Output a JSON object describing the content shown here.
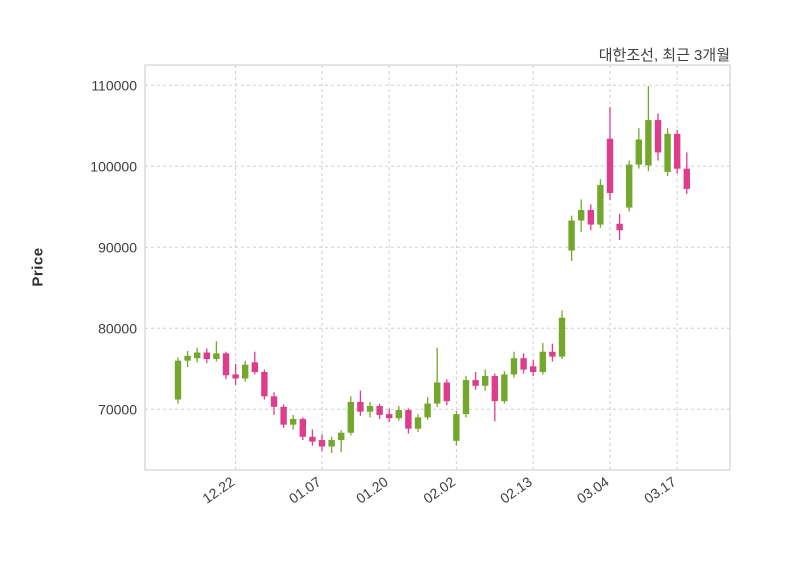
{
  "chart": {
    "title": "대한조선, 최근 3개월",
    "ylabel": "Price"
  },
  "chart_data": {
    "type": "candlestick",
    "title": "대한조선, 최근 3개월",
    "ylabel": "Price",
    "xlabel": "",
    "ylim": [
      62500,
      112500
    ],
    "yticks": [
      70000,
      80000,
      90000,
      100000,
      110000
    ],
    "xtick_labels": [
      "12.22",
      "01.07",
      "01.20",
      "02.02",
      "02.13",
      "03.04",
      "03.17"
    ],
    "xtick_indices": [
      6,
      15,
      22,
      29,
      37,
      45,
      52
    ],
    "grid": "dashed",
    "legend": "none",
    "up_color": "#74a82c",
    "down_color": "#de3d8c",
    "candles_format": [
      "open",
      "high",
      "low",
      "close"
    ],
    "candles": [
      [
        71200,
        76400,
        70700,
        76000
      ],
      [
        76000,
        77200,
        75200,
        76600
      ],
      [
        76300,
        77600,
        75800,
        77000
      ],
      [
        77000,
        77500,
        75700,
        76200
      ],
      [
        76200,
        78400,
        75900,
        76900
      ],
      [
        76900,
        77100,
        73700,
        74200
      ],
      [
        74300,
        75600,
        73000,
        73800
      ],
      [
        73800,
        76000,
        73400,
        75500
      ],
      [
        75800,
        77100,
        74300,
        74600
      ],
      [
        74600,
        74900,
        71200,
        71600
      ],
      [
        71600,
        72100,
        69300,
        70300
      ],
      [
        70300,
        70600,
        67700,
        68100
      ],
      [
        68100,
        69300,
        67500,
        68800
      ],
      [
        68800,
        69000,
        66200,
        66600
      ],
      [
        66600,
        67500,
        65500,
        66000
      ],
      [
        66200,
        66900,
        64800,
        65400
      ],
      [
        65400,
        66600,
        64600,
        66200
      ],
      [
        66200,
        67400,
        64700,
        67100
      ],
      [
        67100,
        71600,
        66800,
        70900
      ],
      [
        70900,
        72300,
        69200,
        69700
      ],
      [
        69700,
        70900,
        69000,
        70400
      ],
      [
        70400,
        70700,
        68800,
        69300
      ],
      [
        69400,
        70100,
        68400,
        68900
      ],
      [
        68900,
        70400,
        68600,
        69900
      ],
      [
        69900,
        70100,
        67000,
        67600
      ],
      [
        67600,
        69400,
        67200,
        69000
      ],
      [
        69000,
        71500,
        68700,
        70700
      ],
      [
        70700,
        77600,
        70300,
        73300
      ],
      [
        73300,
        73700,
        70500,
        71000
      ],
      [
        66100,
        69800,
        65500,
        69400
      ],
      [
        69400,
        74100,
        69000,
        73600
      ],
      [
        73600,
        74600,
        72400,
        72900
      ],
      [
        72900,
        74900,
        72300,
        74100
      ],
      [
        74100,
        74400,
        68500,
        71000
      ],
      [
        71000,
        74700,
        70700,
        74300
      ],
      [
        74300,
        77100,
        73900,
        76300
      ],
      [
        76300,
        76900,
        74400,
        74900
      ],
      [
        75300,
        76100,
        74100,
        74600
      ],
      [
        74600,
        78200,
        74300,
        77100
      ],
      [
        77100,
        78100,
        75900,
        76500
      ],
      [
        76500,
        82200,
        76200,
        81300
      ],
      [
        89600,
        93900,
        88300,
        93300
      ],
      [
        93300,
        95900,
        91900,
        94600
      ],
      [
        94600,
        95300,
        92100,
        92800
      ],
      [
        92800,
        98400,
        92400,
        97700
      ],
      [
        103400,
        107300,
        95800,
        96700
      ],
      [
        92900,
        94100,
        90900,
        92100
      ],
      [
        94900,
        100700,
        94400,
        100200
      ],
      [
        100200,
        104700,
        99700,
        103300
      ],
      [
        100100,
        109900,
        99400,
        105700
      ],
      [
        105700,
        106500,
        100700,
        101700
      ],
      [
        99300,
        104700,
        98800,
        104000
      ],
      [
        104000,
        104500,
        99100,
        99700
      ],
      [
        99700,
        101700,
        96600,
        97200
      ]
    ]
  }
}
